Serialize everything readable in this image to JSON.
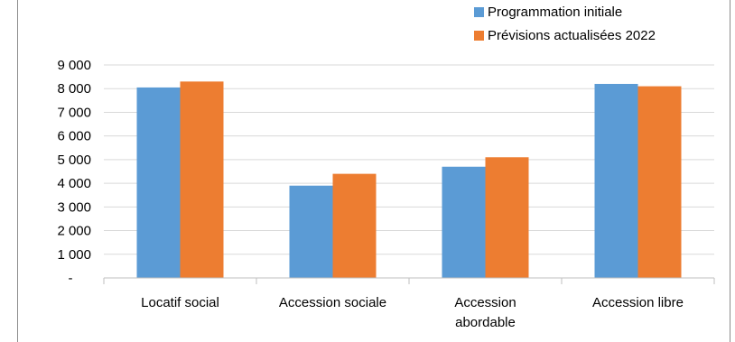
{
  "chart_data": {
    "type": "bar",
    "categories": [
      [
        "Locatif social"
      ],
      [
        "Accession sociale"
      ],
      [
        "Accession",
        "abordable"
      ],
      [
        "Accession libre"
      ]
    ],
    "series": [
      {
        "name": "Programmation initiale",
        "color": "#5b9bd5",
        "values": [
          8050,
          3900,
          4700,
          8200
        ]
      },
      {
        "name": "Prévisions actualisées 2022",
        "color": "#ed7d31",
        "values": [
          8300,
          4400,
          5100,
          8100
        ]
      }
    ],
    "yticks": [
      {
        "value": 0,
        "label": "-"
      },
      {
        "value": 1000,
        "label": "1 000"
      },
      {
        "value": 2000,
        "label": "2 000"
      },
      {
        "value": 3000,
        "label": "3 000"
      },
      {
        "value": 4000,
        "label": "4 000"
      },
      {
        "value": 5000,
        "label": "5 000"
      },
      {
        "value": 6000,
        "label": "6 000"
      },
      {
        "value": 7000,
        "label": "7 000"
      },
      {
        "value": 8000,
        "label": "8 000"
      },
      {
        "value": 9000,
        "label": "9 000"
      }
    ],
    "ylim": [
      0,
      9000
    ],
    "grid": true,
    "legend": "top-right"
  }
}
